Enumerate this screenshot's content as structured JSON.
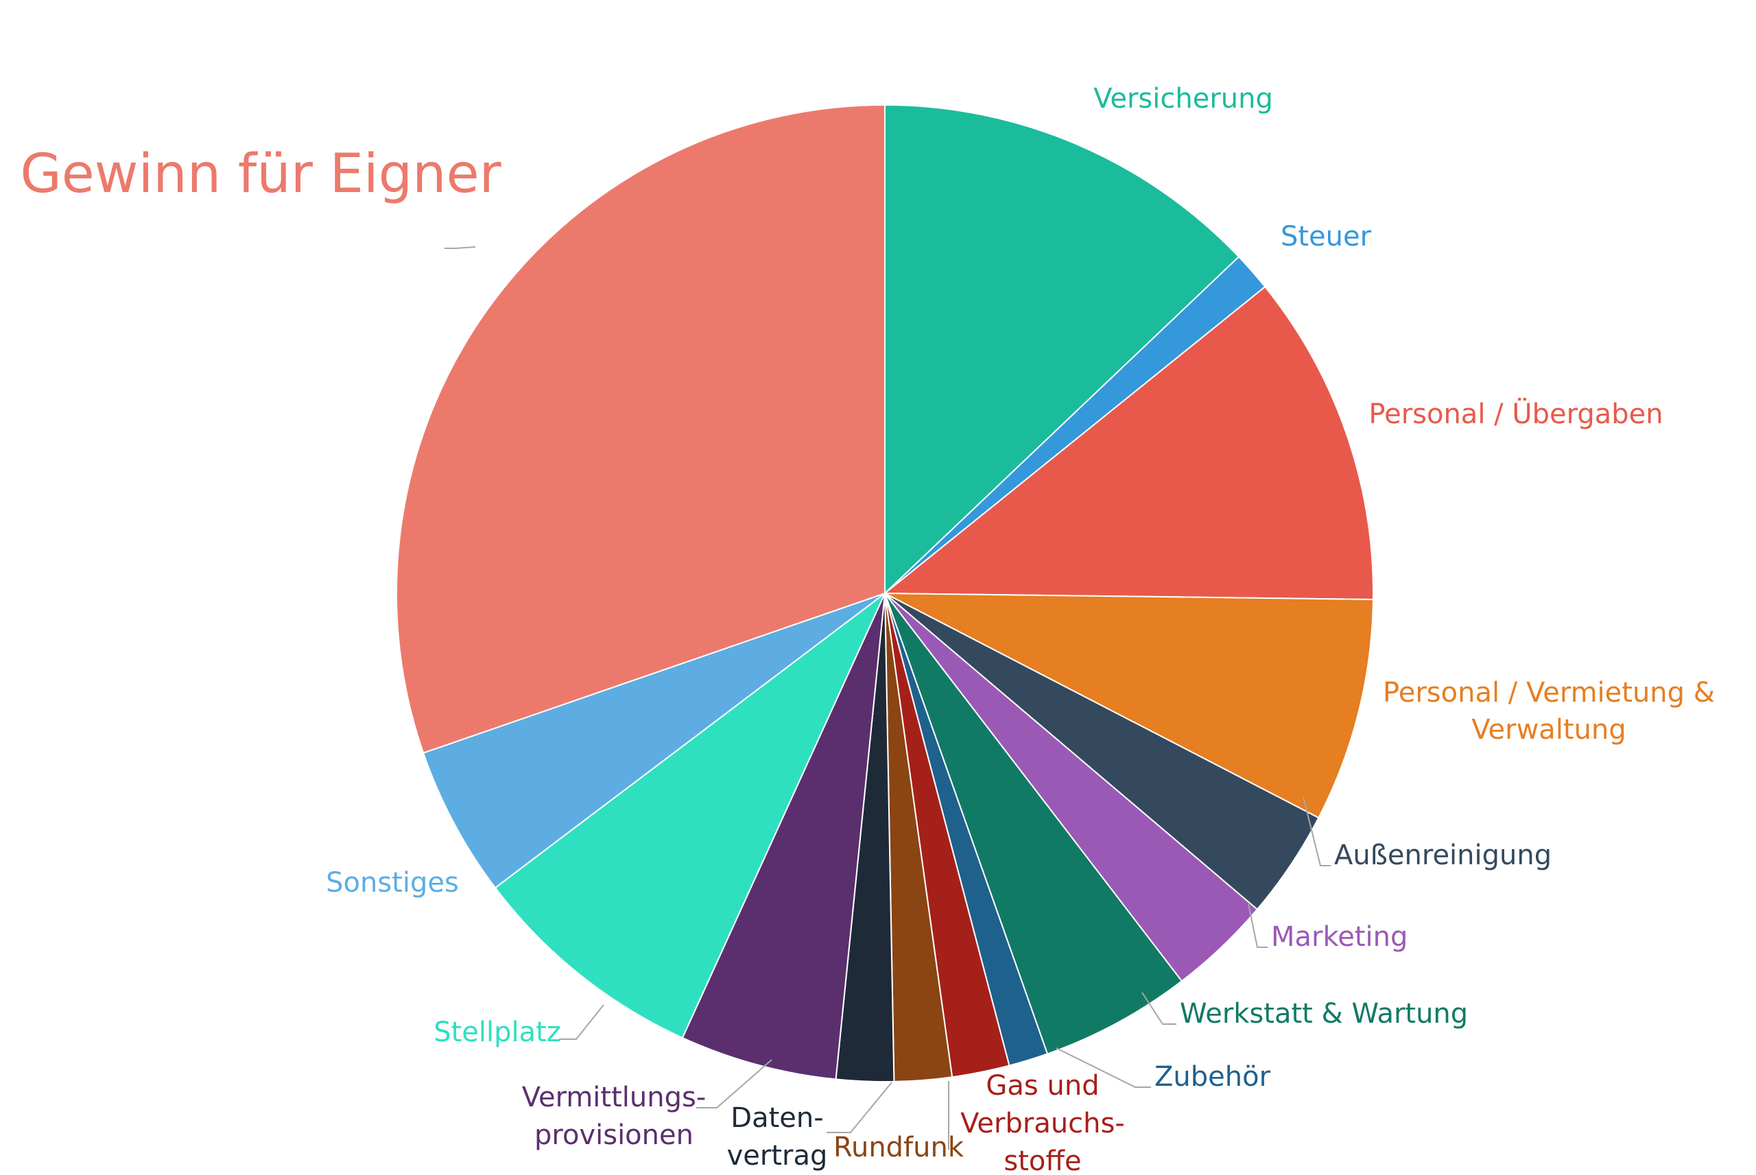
{
  "chart_data": {
    "type": "pie",
    "title": "",
    "start": "top",
    "direction": "clockwise",
    "slices": [
      {
        "label": "Versicherung",
        "value": 12.9,
        "color": "#1ABC9C"
      },
      {
        "label": "Steuer",
        "value": 1.3,
        "color": "#3498DB"
      },
      {
        "label": "Personal / Übergaben",
        "value": 11.0,
        "color": "#E8594B"
      },
      {
        "label": "Personal / Vermietung & Verwaltung",
        "value": 7.4,
        "color": "#E67E22"
      },
      {
        "label": "Außenreinigung",
        "value": 3.6,
        "color": "#34495E"
      },
      {
        "label": "Marketing",
        "value": 3.4,
        "color": "#9B59B6"
      },
      {
        "label": "Werkstatt & Wartung",
        "value": 5.0,
        "color": "#117A65"
      },
      {
        "label": "Zubehör",
        "value": 1.3,
        "color": "#1F618D"
      },
      {
        "label": "Gas und Verbrauchs-stoffe",
        "value": 1.9,
        "color": "#A6201A"
      },
      {
        "label": "Rundfunk",
        "value": 1.9,
        "color": "#8B4513"
      },
      {
        "label": "Daten-vertrag",
        "value": 1.9,
        "color": "#1F2A38"
      },
      {
        "label": "Vermittlungs-provisionen",
        "value": 5.2,
        "color": "#5B2F6E"
      },
      {
        "label": "Stellplatz",
        "value": 7.9,
        "color": "#2EE0C0"
      },
      {
        "label": "Sonstiges",
        "value": 5.0,
        "color": "#5DADE2"
      },
      {
        "label": "Gewinn für Eigner",
        "value": 30.3,
        "color": "#EC7A6C"
      }
    ]
  }
}
